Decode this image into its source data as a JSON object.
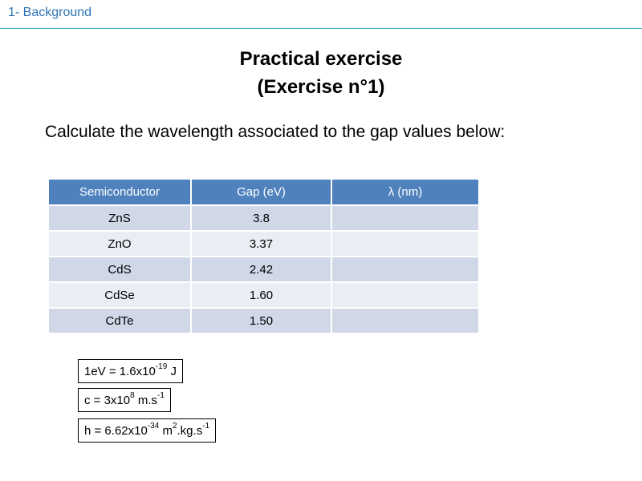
{
  "header": {
    "section_label": "1- Background"
  },
  "title": {
    "line1": "Practical exercise",
    "line2": "(Exercise n°1)"
  },
  "instruction": "Calculate the wavelength associated to the gap values below:",
  "colors": {
    "header_accent": "#2E75B6",
    "table_header": "#4F81BD",
    "row_dark": "#D0D8E8",
    "row_light": "#E9EDF4"
  },
  "table": {
    "columns": [
      "Semiconductor",
      "Gap (eV)",
      "λ (nm)"
    ],
    "rows": [
      {
        "semiconductor": "ZnS",
        "gap": "3.8",
        "wavelength": ""
      },
      {
        "semiconductor": "ZnO",
        "gap": "3.37",
        "wavelength": ""
      },
      {
        "semiconductor": "CdS",
        "gap": "2.42",
        "wavelength": ""
      },
      {
        "semiconductor": "CdSe",
        "gap": "1.60",
        "wavelength": ""
      },
      {
        "semiconductor": "CdTe",
        "gap": "1.50",
        "wavelength": ""
      }
    ]
  },
  "constants": [
    {
      "base": "1eV = 1.6x10",
      "exp": "-19",
      "rest": " J"
    },
    {
      "base": "c = 3x10",
      "exp": "8",
      "mid": " m.s",
      "exp2": "-1"
    },
    {
      "base": "h = 6.62x10",
      "exp": "-34",
      "mid": " m",
      "exp2": "2",
      "rest": ".kg.s",
      "exp3": "-1"
    }
  ]
}
